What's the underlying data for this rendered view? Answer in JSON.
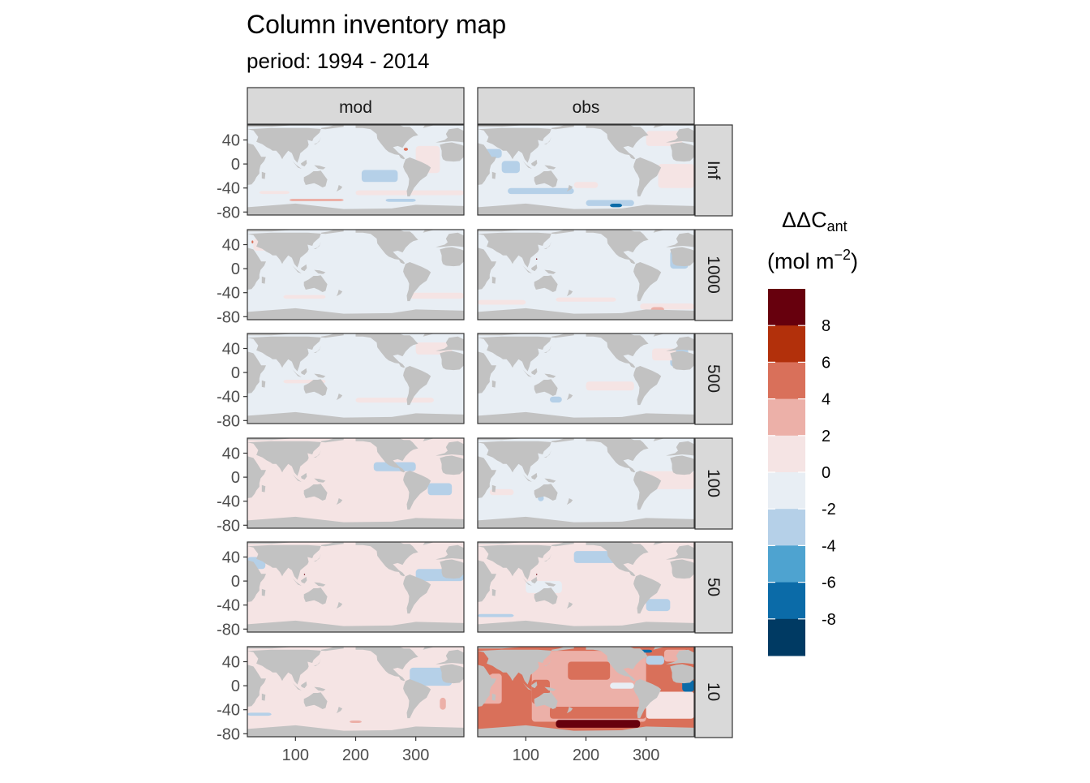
{
  "chart_data": {
    "type": "heatmap",
    "title": "Column inventory map",
    "subtitle": "period: 1994 - 2014",
    "facet_columns": [
      "mod",
      "obs"
    ],
    "facet_rows": [
      "Inf",
      "1000",
      "500",
      "100",
      "50",
      "10"
    ],
    "x_ticks": [
      "100",
      "200",
      "300"
    ],
    "y_ticks": [
      "40",
      "0",
      "-40",
      "-80"
    ],
    "x_tick_values": [
      100,
      200,
      300
    ],
    "y_tick_values": [
      40,
      0,
      -40,
      -80
    ],
    "xlim": [
      20,
      380
    ],
    "ylim": [
      -85,
      65
    ],
    "legend": {
      "title_main": "ΔΔC",
      "title_sub": "ant",
      "unit_prefix": "(mol m",
      "unit_exp": "−2",
      "unit_suffix": ")",
      "position": "right",
      "breaks": [
        "8",
        "6",
        "4",
        "2",
        "0",
        "-2",
        "-4",
        "-6",
        "-8"
      ],
      "colors": [
        "#67000d",
        "#b2300b",
        "#d9705a",
        "#ecb0a8",
        "#f5e4e4",
        "#e8eef4",
        "#b5d0e8",
        "#4ea3d0",
        "#0b6ba8",
        "#003a63"
      ]
    },
    "panels": [
      {
        "col": "mod",
        "row": "Inf",
        "level": 0,
        "notes": "mostly -2 to 0, small positive patches in Atlantic and Southern Ocean"
      },
      {
        "col": "obs",
        "row": "Inf",
        "level": 0,
        "notes": "mixed; negative patches in Southern Ocean, positive in Atlantic"
      },
      {
        "col": "mod",
        "row": "1000",
        "level": 0,
        "notes": "mostly -2 to 0"
      },
      {
        "col": "obs",
        "row": "1000",
        "level": 0,
        "notes": "mostly -2 to 0, positive bands south"
      },
      {
        "col": "mod",
        "row": "500",
        "level": 0,
        "notes": "mostly -2 to 0"
      },
      {
        "col": "obs",
        "row": "500",
        "level": 0,
        "notes": "mostly -2 to 0"
      },
      {
        "col": "mod",
        "row": "100",
        "level": 1,
        "notes": "mostly 0 to 2"
      },
      {
        "col": "obs",
        "row": "100",
        "level": 0,
        "notes": "mostly -2 to 0"
      },
      {
        "col": "mod",
        "row": "50",
        "level": 1,
        "notes": "mostly 0 to 2"
      },
      {
        "col": "obs",
        "row": "50",
        "level": 1,
        "notes": "mixed 0 to 2"
      },
      {
        "col": "mod",
        "row": "10",
        "level": 1,
        "notes": "mostly 0 to 2"
      },
      {
        "col": "obs",
        "row": "10",
        "level": 3,
        "notes": "strong positive 2 to 8+, highest in South Pacific"
      }
    ]
  }
}
